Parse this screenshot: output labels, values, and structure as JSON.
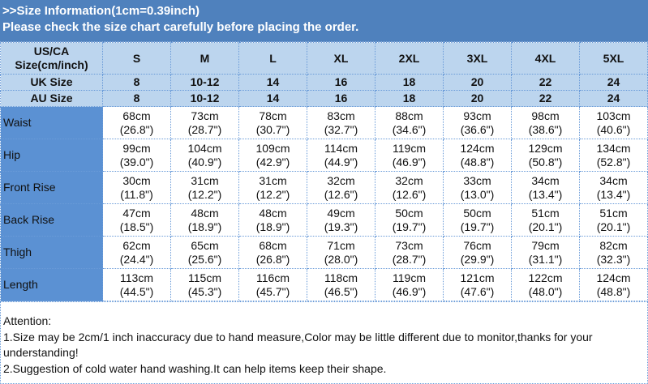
{
  "title": {
    "line1": ">>Size Information(1cm=0.39inch)",
    "line2": "Please check the size chart carefully before placing the order."
  },
  "header": {
    "label": "US/CA Size(cm/inch)",
    "sizes": [
      "S",
      "M",
      "L",
      "XL",
      "2XL",
      "3XL",
      "4XL",
      "5XL"
    ]
  },
  "uk": {
    "label": "UK Size",
    "values": [
      "8",
      "10-12",
      "14",
      "16",
      "18",
      "20",
      "22",
      "24"
    ]
  },
  "au": {
    "label": "AU Size",
    "values": [
      "8",
      "10-12",
      "14",
      "16",
      "18",
      "20",
      "22",
      "24"
    ]
  },
  "rows": [
    {
      "label": "Waist",
      "cm": [
        "68cm",
        "73cm",
        "78cm",
        "83cm",
        "88cm",
        "93cm",
        "98cm",
        "103cm"
      ],
      "inch": [
        "(26.8\")",
        "(28.7\")",
        "(30.7\")",
        "(32.7\")",
        "(34.6\")",
        "(36.6\")",
        "(38.6\")",
        "(40.6\")"
      ]
    },
    {
      "label": "Hip",
      "cm": [
        "99cm",
        "104cm",
        "109cm",
        "114cm",
        "119cm",
        "124cm",
        "129cm",
        "134cm"
      ],
      "inch": [
        "(39.0\")",
        "(40.9\")",
        "(42.9\")",
        "(44.9\")",
        "(46.9\")",
        "(48.8\")",
        "(50.8\")",
        "(52.8\")"
      ]
    },
    {
      "label": "Front Rise",
      "cm": [
        "30cm",
        "31cm",
        "31cm",
        "32cm",
        "32cm",
        "33cm",
        "34cm",
        "34cm"
      ],
      "inch": [
        "(11.8\")",
        "(12.2\")",
        "(12.2\")",
        "(12.6\")",
        "(12.6\")",
        "(13.0\")",
        "(13.4\")",
        "(13.4\")"
      ]
    },
    {
      "label": "Back Rise",
      "cm": [
        "47cm",
        "48cm",
        "48cm",
        "49cm",
        "50cm",
        "50cm",
        "51cm",
        "51cm"
      ],
      "inch": [
        "(18.5\")",
        "(18.9\")",
        "(18.9\")",
        "(19.3\")",
        "(19.7\")",
        "(19.7\")",
        "(20.1\")",
        "(20.1\")"
      ]
    },
    {
      "label": "Thigh",
      "cm": [
        "62cm",
        "65cm",
        "68cm",
        "71cm",
        "73cm",
        "76cm",
        "79cm",
        "82cm"
      ],
      "inch": [
        "(24.4\")",
        "(25.6\")",
        "(26.8\")",
        "(28.0\")",
        "(28.7\")",
        "(29.9\")",
        "(31.1\")",
        "(32.3\")"
      ]
    },
    {
      "label": "Length",
      "cm": [
        "113cm",
        "115cm",
        "116cm",
        "118cm",
        "119cm",
        "121cm",
        "122cm",
        "124cm"
      ],
      "inch": [
        "(44.5\")",
        "(45.3\")",
        "(45.7\")",
        "(46.5\")",
        "(46.9\")",
        "(47.6\")",
        "(48.0\")",
        "(48.8\")"
      ]
    }
  ],
  "attention": {
    "heading": "Attention:",
    "note1": "1.Size may be 2cm/1 inch inaccuracy due to hand measure,Color may be little different due to monitor,thanks for your understanding!",
    "note2": "2.Suggestion of cold water hand washing.It can help items keep their shape."
  },
  "colors": {
    "title_bg": "#4f81bd",
    "header_bg": "#bcd5ee",
    "label_bg": "#5b91d3"
  }
}
